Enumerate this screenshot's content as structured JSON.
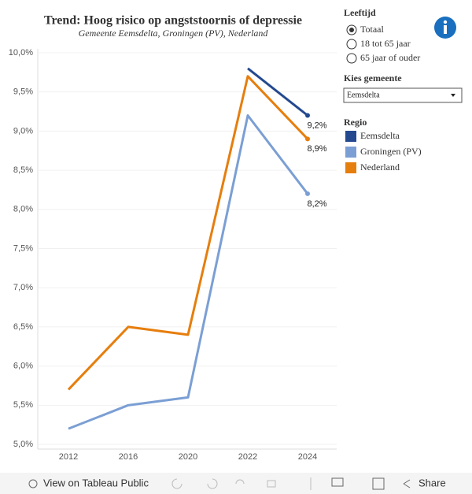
{
  "chart_data": {
    "type": "line",
    "title": "Trend: Hoog risico op angststoornis of depressie",
    "subtitle": "Gemeente Eemsdelta, Groningen (PV), Nederland",
    "categories": [
      "2012",
      "2016",
      "2020",
      "2022",
      "2024"
    ],
    "series": [
      {
        "name": "Eemsdelta",
        "color": "#24498f",
        "values": [
          null,
          null,
          null,
          9.8,
          9.2
        ],
        "value_labels": [
          null,
          null,
          null,
          null,
          "9,2%"
        ]
      },
      {
        "name": "Groningen (PV)",
        "color": "#7b9fd4",
        "values": [
          5.2,
          5.5,
          5.6,
          9.2,
          8.2
        ],
        "value_labels": [
          null,
          null,
          null,
          null,
          "8,2%"
        ]
      },
      {
        "name": "Nederland",
        "color": "#e67e0d",
        "values": [
          5.7,
          6.5,
          6.4,
          9.7,
          8.9
        ],
        "value_labels": [
          null,
          null,
          null,
          null,
          "8,9%"
        ]
      }
    ],
    "ylim": [
      4.94,
      10.05
    ],
    "yticks": [
      {
        "value": 5.0,
        "label": "5,0%"
      },
      {
        "value": 5.5,
        "label": "5,5%"
      },
      {
        "value": 6.0,
        "label": "6,0%"
      },
      {
        "value": 6.5,
        "label": "6,5%"
      },
      {
        "value": 7.0,
        "label": "7,0%"
      },
      {
        "value": 7.5,
        "label": "7,5%"
      },
      {
        "value": 8.0,
        "label": "8,0%"
      },
      {
        "value": 8.5,
        "label": "8,5%"
      },
      {
        "value": 9.0,
        "label": "9,0%"
      },
      {
        "value": 9.5,
        "label": "9,5%"
      },
      {
        "value": 10.0,
        "label": "10,0%"
      }
    ],
    "grid": true,
    "legend_title": "Regio"
  },
  "filters": {
    "leeftijd": {
      "title": "Leeftijd",
      "options": [
        "Totaal",
        "18 tot 65 jaar",
        "65 jaar of ouder"
      ],
      "selected": 0
    },
    "gemeente": {
      "title": "Kies gemeente",
      "value": "Eemsdelta"
    }
  },
  "toolbar": {
    "view": "View on Tableau Public",
    "share": "Share"
  }
}
